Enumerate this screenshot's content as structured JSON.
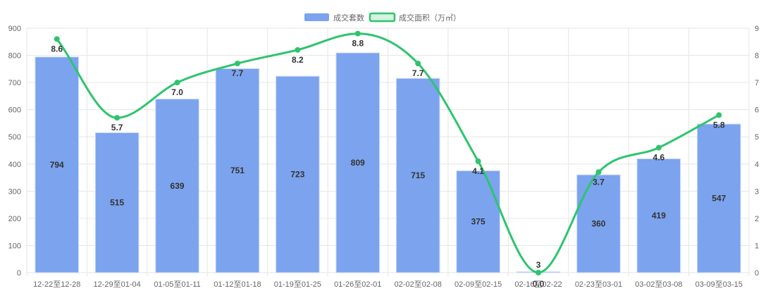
{
  "chart_data": {
    "type": "bar",
    "categories": [
      "12-22至12-28",
      "12-29至01-04",
      "01-05至01-11",
      "01-12至01-18",
      "01-19至01-25",
      "01-26至02-01",
      "02-02至02-08",
      "02-09至02-15",
      "02-16至02-22",
      "02-23至03-01",
      "03-02至03-08",
      "03-09至03-15"
    ],
    "series": [
      {
        "name": "成交套数",
        "type": "bar",
        "axis": "left",
        "values": [
          794,
          515,
          639,
          751,
          723,
          809,
          715,
          375,
          3,
          360,
          419,
          547
        ],
        "labels": [
          "794",
          "515",
          "639",
          "751",
          "723",
          "809",
          "715",
          "375",
          "3",
          "360",
          "419",
          "547"
        ]
      },
      {
        "name": "成交面积（万㎡）",
        "type": "line",
        "axis": "right",
        "values": [
          8.6,
          5.7,
          7.0,
          7.7,
          8.2,
          8.8,
          7.7,
          4.1,
          0.0,
          3.7,
          4.6,
          5.8
        ],
        "labels": [
          "8.6",
          "5.7",
          "7.0",
          "7.7",
          "8.2",
          "8.8",
          "7.7",
          "4.1",
          "0.0",
          "3.7",
          "4.6",
          "5.8"
        ]
      }
    ],
    "y_left": {
      "ylim": [
        0,
        900
      ],
      "ticks": [
        "0",
        "100",
        "200",
        "300",
        "400",
        "500",
        "600",
        "700",
        "800",
        "900"
      ]
    },
    "y_right": {
      "ylim": [
        0,
        9
      ],
      "ticks": [
        "0",
        "1",
        "2",
        "3",
        "4",
        "5",
        "6",
        "7",
        "8",
        "9"
      ]
    },
    "grid": true,
    "legend_position": "top-center",
    "colors": {
      "bar": "#7ba3ee",
      "line": "#2ec46e",
      "legend_line_fill": "#d6f2e0"
    }
  }
}
